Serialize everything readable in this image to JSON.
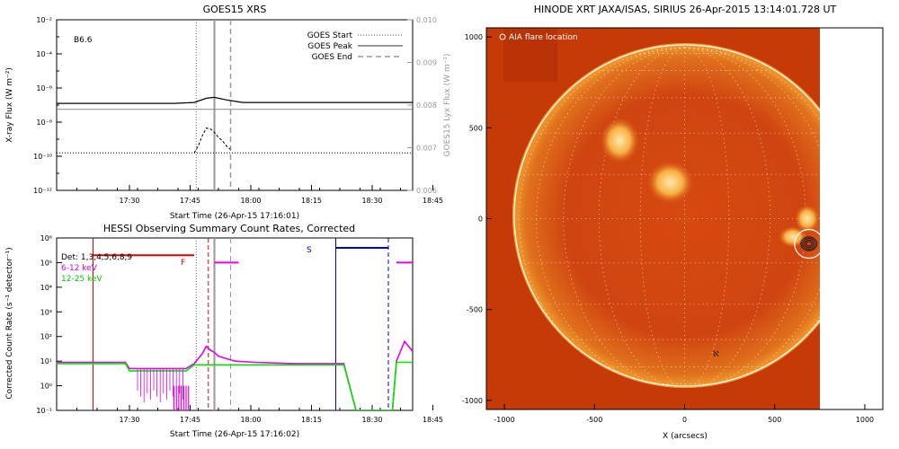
{
  "chart_data": [
    {
      "type": "line",
      "title": "GOES15 XRS",
      "xlabel": "Start Time (26-Apr-15 17:16:01)",
      "ylabel": "X-ray Flux (W m⁻²)",
      "y2label": "GOES15 Lyx Flux (W m⁻²)",
      "x_ticks": [
        "17:30",
        "17:45",
        "18:00",
        "18:15",
        "18:30",
        "18:45"
      ],
      "y_ticks": [
        "10⁻²",
        "10⁻⁴",
        "10⁻⁶",
        "10⁻⁸",
        "10⁻¹⁰",
        "10⁻¹²"
      ],
      "y2_ticks": [
        "0.010",
        "0.009",
        "0.008",
        "0.007",
        "0.006"
      ],
      "xlim_minutes": [
        -4,
        84
      ],
      "ylim_log10": [
        -12,
        -2
      ],
      "y2lim": [
        0.006,
        0.01
      ],
      "y_scale": "log",
      "class_label": "B6.6",
      "legend": {
        "placement": "top-right",
        "entries": [
          "GOES Start",
          "GOES Peak",
          "GOES End"
        ]
      },
      "event_markers_minutes": {
        "start": 30.5,
        "peak": 35,
        "end": 39
      },
      "series": [
        {
          "style": "solid-black",
          "x": [
            -4,
            25,
            30,
            33,
            35,
            38,
            42,
            84
          ],
          "log10": [
            -6.9,
            -6.9,
            -6.85,
            -6.6,
            -6.55,
            -6.7,
            -6.85,
            -6.85
          ]
        },
        {
          "style": "solid-gray",
          "axis": "y2",
          "x": [
            -4,
            84
          ],
          "values": [
            0.0079,
            0.0079
          ]
        },
        {
          "style": "dashed-black",
          "x": [
            30,
            31,
            32,
            33,
            34,
            35,
            36,
            37,
            38,
            39
          ],
          "log10": [
            -9.8,
            -9.4,
            -8.8,
            -8.35,
            -8.4,
            -8.6,
            -8.9,
            -9.1,
            -9.4,
            -9.6
          ]
        },
        {
          "style": "dotted-black",
          "x": [
            -4,
            84
          ],
          "log10": [
            -9.8,
            -9.8
          ]
        }
      ]
    },
    {
      "type": "line",
      "title": "HESSI Observing Summary Count Rates, Corrected",
      "xlabel": "Start Time (26-Apr-15 17:16:02)",
      "ylabel": "Corrected Count Rate (s⁻¹ detector⁻¹)",
      "x_ticks": [
        "17:30",
        "17:45",
        "18:00",
        "18:15",
        "18:30",
        "18:45"
      ],
      "y_ticks": [
        "10⁶",
        "10⁵",
        "10⁴",
        "10³",
        "10²",
        "10¹",
        "10⁰",
        "10⁻¹"
      ],
      "xlim_minutes": [
        -4,
        84
      ],
      "ylim_log10": [
        -1,
        6
      ],
      "y_scale": "log",
      "legend": {
        "placement": "top-left",
        "entries": [
          "Det: 1,3,4,5,6,8,9",
          "6-12 keV",
          "12-25 keV"
        ]
      },
      "flag_labels": [
        "F",
        "S"
      ],
      "series": [
        {
          "name": "6-12 keV",
          "color": "#e800e8",
          "x": [
            -4,
            13,
            14,
            28,
            30,
            31,
            32,
            33,
            34,
            35,
            36,
            38,
            40,
            45,
            55,
            67,
            70,
            79,
            80,
            82,
            84
          ],
          "log10": [
            0.95,
            0.95,
            0.7,
            0.7,
            0.9,
            1.1,
            1.3,
            1.6,
            1.45,
            1.35,
            1.2,
            1.1,
            1.0,
            0.95,
            0.9,
            0.9,
            -1,
            -1,
            1.0,
            1.8,
            1.4
          ]
        },
        {
          "name": "12-25 keV",
          "color": "#00e800",
          "x": [
            -4,
            13,
            14,
            28,
            30,
            40,
            67,
            70,
            79,
            80,
            84
          ],
          "log10": [
            0.9,
            0.9,
            0.6,
            0.6,
            0.85,
            0.85,
            0.85,
            -1,
            -1,
            0.95,
            0.95
          ]
        }
      ],
      "bars": [
        {
          "color": "#e00000",
          "x": [
            5,
            30
          ],
          "log10": 5.3
        },
        {
          "color": "#e800e8",
          "x": [
            35,
            41
          ],
          "log10": 5.0
        },
        {
          "color": "#0000cc",
          "x": [
            65,
            78
          ],
          "log10": 5.6
        },
        {
          "color": "#e800e8",
          "x": [
            80,
            84
          ],
          "log10": 5.0
        }
      ]
    },
    {
      "type": "heatmap",
      "title": "HINODE XRT JAXA/ISAS, SIRIUS 26-Apr-2015 13:14:01.728 UT",
      "xlabel": "X (arcsecs)",
      "annotation": "AIA flare location",
      "x_ticks": [
        "-1000",
        "-500",
        "0",
        "500",
        "1000"
      ],
      "y_ticks": [
        "1000",
        "500",
        "0",
        "-500",
        "-1000"
      ],
      "xlim": [
        -1100,
        1100
      ],
      "ylim": [
        -1050,
        1050
      ],
      "solar_radius_arcsec": 950,
      "flare_location_arcsec": [
        690,
        -140
      ],
      "bright_regions_arcsec": [
        [
          -360,
          430
        ],
        [
          -80,
          200
        ],
        [
          680,
          0
        ],
        [
          600,
          -100
        ]
      ]
    }
  ]
}
